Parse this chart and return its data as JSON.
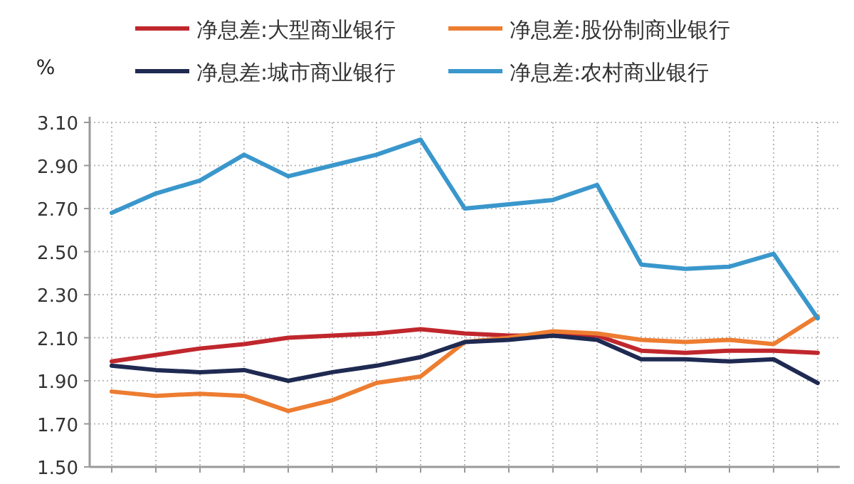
{
  "chart_data": {
    "type": "line",
    "ylabel": "%",
    "categories": [
      null,
      null,
      null,
      null,
      null,
      null,
      null,
      null,
      null,
      null,
      null,
      null,
      null,
      null,
      null,
      null,
      null
    ],
    "ylim": [
      1.5,
      3.1
    ],
    "yticks": [
      {
        "value": 1.5,
        "label": "1.50"
      },
      {
        "value": 1.7,
        "label": "1.70"
      },
      {
        "value": 1.9,
        "label": "1.90"
      },
      {
        "value": 2.1,
        "label": "2.10"
      },
      {
        "value": 2.3,
        "label": "2.30"
      },
      {
        "value": 2.5,
        "label": "2.50"
      },
      {
        "value": 2.7,
        "label": "2.70"
      },
      {
        "value": 2.9,
        "label": "2.90"
      },
      {
        "value": 3.1,
        "label": "3.10"
      }
    ],
    "grid": true,
    "legend": "top",
    "marker": "none",
    "line_style": "solid",
    "series": [
      {
        "name": "净息差:大型商业银行",
        "color": "#c0272d",
        "values": [
          1.99,
          2.02,
          2.05,
          2.07,
          2.1,
          2.11,
          2.12,
          2.14,
          2.12,
          2.11,
          2.11,
          2.11,
          2.04,
          2.03,
          2.04,
          2.04,
          2.03
        ]
      },
      {
        "name": "净息差:股份制商业银行",
        "color": "#ed7d31",
        "values": [
          1.85,
          1.83,
          1.84,
          1.83,
          1.76,
          1.81,
          1.89,
          1.92,
          2.08,
          2.1,
          2.13,
          2.12,
          2.09,
          2.08,
          2.09,
          2.07,
          2.2
        ]
      },
      {
        "name": "净息差:城市商业银行",
        "color": "#1f2a52",
        "values": [
          1.97,
          1.95,
          1.94,
          1.95,
          1.9,
          1.94,
          1.97,
          2.01,
          2.08,
          2.09,
          2.11,
          2.09,
          2.0,
          2.0,
          1.99,
          2.0,
          1.89
        ]
      },
      {
        "name": "净息差:农村商业银行",
        "color": "#3a97cc",
        "values": [
          2.68,
          2.77,
          2.83,
          2.95,
          2.85,
          2.9,
          2.95,
          3.02,
          2.7,
          2.72,
          2.74,
          2.81,
          2.44,
          2.42,
          2.43,
          2.49,
          2.19
        ]
      }
    ]
  }
}
